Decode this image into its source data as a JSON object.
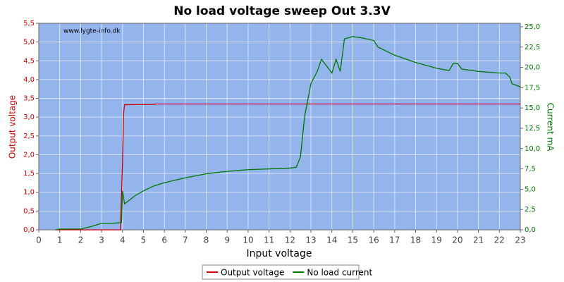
{
  "chart_data": {
    "type": "line",
    "title": "No load voltage sweep Out 3.3V",
    "watermark": "www.lygte-info.dk",
    "xlabel": "Input voltage",
    "ylabel": "Output voltage",
    "y2label": "Current mA",
    "xlim": [
      0,
      23
    ],
    "xticks": [
      0,
      1,
      2,
      3,
      4,
      5,
      6,
      7,
      8,
      9,
      10,
      11,
      12,
      13,
      14,
      15,
      16,
      17,
      18,
      19,
      20,
      21,
      22,
      23
    ],
    "ylim": [
      0,
      5.5
    ],
    "yticks": [
      {
        "value": 0,
        "label": "0,0"
      },
      {
        "value": 0.5,
        "label": "0,5"
      },
      {
        "value": 1,
        "label": "1,0"
      },
      {
        "value": 1.5,
        "label": "1,5"
      },
      {
        "value": 2,
        "label": "2,0"
      },
      {
        "value": 2.5,
        "label": "2,5"
      },
      {
        "value": 3,
        "label": "3,0"
      },
      {
        "value": 3.5,
        "label": "3,5"
      },
      {
        "value": 4,
        "label": "4,0"
      },
      {
        "value": 4.5,
        "label": "4,5"
      },
      {
        "value": 5,
        "label": "5,0"
      },
      {
        "value": 5.5,
        "label": "5,5"
      }
    ],
    "y2lim": [
      0,
      25.43
    ],
    "y2ticks": [
      {
        "value": 0,
        "label": "0,0"
      },
      {
        "value": 2.5,
        "label": "2,5"
      },
      {
        "value": 5,
        "label": "5,0"
      },
      {
        "value": 7.5,
        "label": "7,5"
      },
      {
        "value": 10,
        "label": "10,0"
      },
      {
        "value": 12.5,
        "label": "12,5"
      },
      {
        "value": 15,
        "label": "15,0"
      },
      {
        "value": 17.5,
        "label": "17,5"
      },
      {
        "value": 20,
        "label": "20,0"
      },
      {
        "value": 22.5,
        "label": "22,5"
      },
      {
        "value": 25,
        "label": "25,0"
      }
    ],
    "grid": true,
    "legend": "bottom",
    "series": [
      {
        "name": "Output voltage",
        "color": "#cc0000",
        "x": [
          0.8,
          3.9,
          4.0,
          4.05,
          4.1,
          5.5,
          5.6,
          23
        ],
        "values": [
          0,
          0,
          1.8,
          3.1,
          3.33,
          3.34,
          3.35,
          3.35
        ]
      },
      {
        "name": "No load current",
        "color": "#007700",
        "axis": "y2",
        "x": [
          0.8,
          1,
          2,
          2.5,
          3,
          3.5,
          3.95,
          4.0,
          4.1,
          4.3,
          4.6,
          5,
          5.5,
          6,
          7,
          8,
          9,
          10,
          11,
          12,
          12.3,
          12.5,
          12.7,
          13,
          13.3,
          13.5,
          13.8,
          14,
          14.2,
          14.4,
          14.6,
          15,
          15.5,
          16,
          16.2,
          17,
          18,
          19,
          19.6,
          19.8,
          20,
          20.2,
          21,
          22,
          22.3,
          22.5,
          22.6,
          23
        ],
        "values": [
          0,
          0.1,
          0.1,
          0.4,
          0.8,
          0.8,
          0.9,
          4.8,
          3.2,
          3.6,
          4.2,
          4.8,
          5.4,
          5.8,
          6.4,
          6.9,
          7.2,
          7.4,
          7.5,
          7.6,
          7.7,
          9,
          14,
          18,
          19.5,
          21,
          20,
          19.3,
          21,
          19.5,
          23.5,
          23.8,
          23.6,
          23.3,
          22.5,
          21.5,
          20.6,
          19.9,
          19.6,
          20.5,
          20.5,
          19.8,
          19.5,
          19.3,
          19.3,
          18.8,
          18,
          17.6
        ]
      }
    ]
  }
}
